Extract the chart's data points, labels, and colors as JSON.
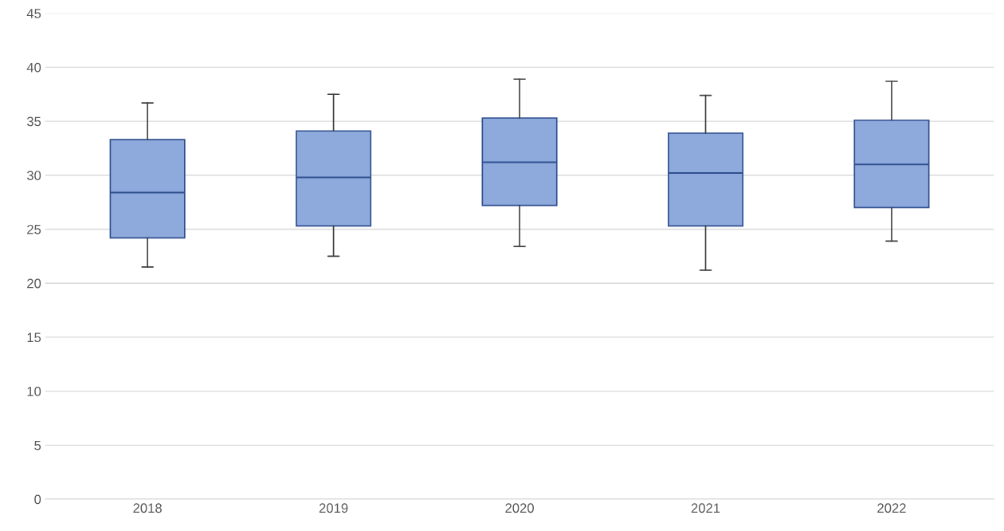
{
  "chart_data": {
    "type": "box",
    "categories": [
      "2018",
      "2019",
      "2020",
      "2021",
      "2022"
    ],
    "color": "#8eaadc",
    "boxes": [
      {
        "low": 21.5,
        "q1": 24.2,
        "median": 28.4,
        "q3": 33.3,
        "high": 36.7
      },
      {
        "low": 22.5,
        "q1": 25.3,
        "median": 29.8,
        "q3": 34.1,
        "high": 37.5
      },
      {
        "low": 23.4,
        "q1": 27.2,
        "median": 31.2,
        "q3": 35.3,
        "high": 38.9
      },
      {
        "low": 21.2,
        "q1": 25.3,
        "median": 30.2,
        "q3": 33.9,
        "high": 37.4
      },
      {
        "low": 23.9,
        "q1": 27.0,
        "median": 31.0,
        "q3": 35.1,
        "high": 38.7
      }
    ],
    "ylim": [
      0,
      45
    ],
    "yticks": [
      0,
      5,
      10,
      15,
      20,
      25,
      30,
      35,
      40,
      45
    ],
    "grid": "y"
  }
}
